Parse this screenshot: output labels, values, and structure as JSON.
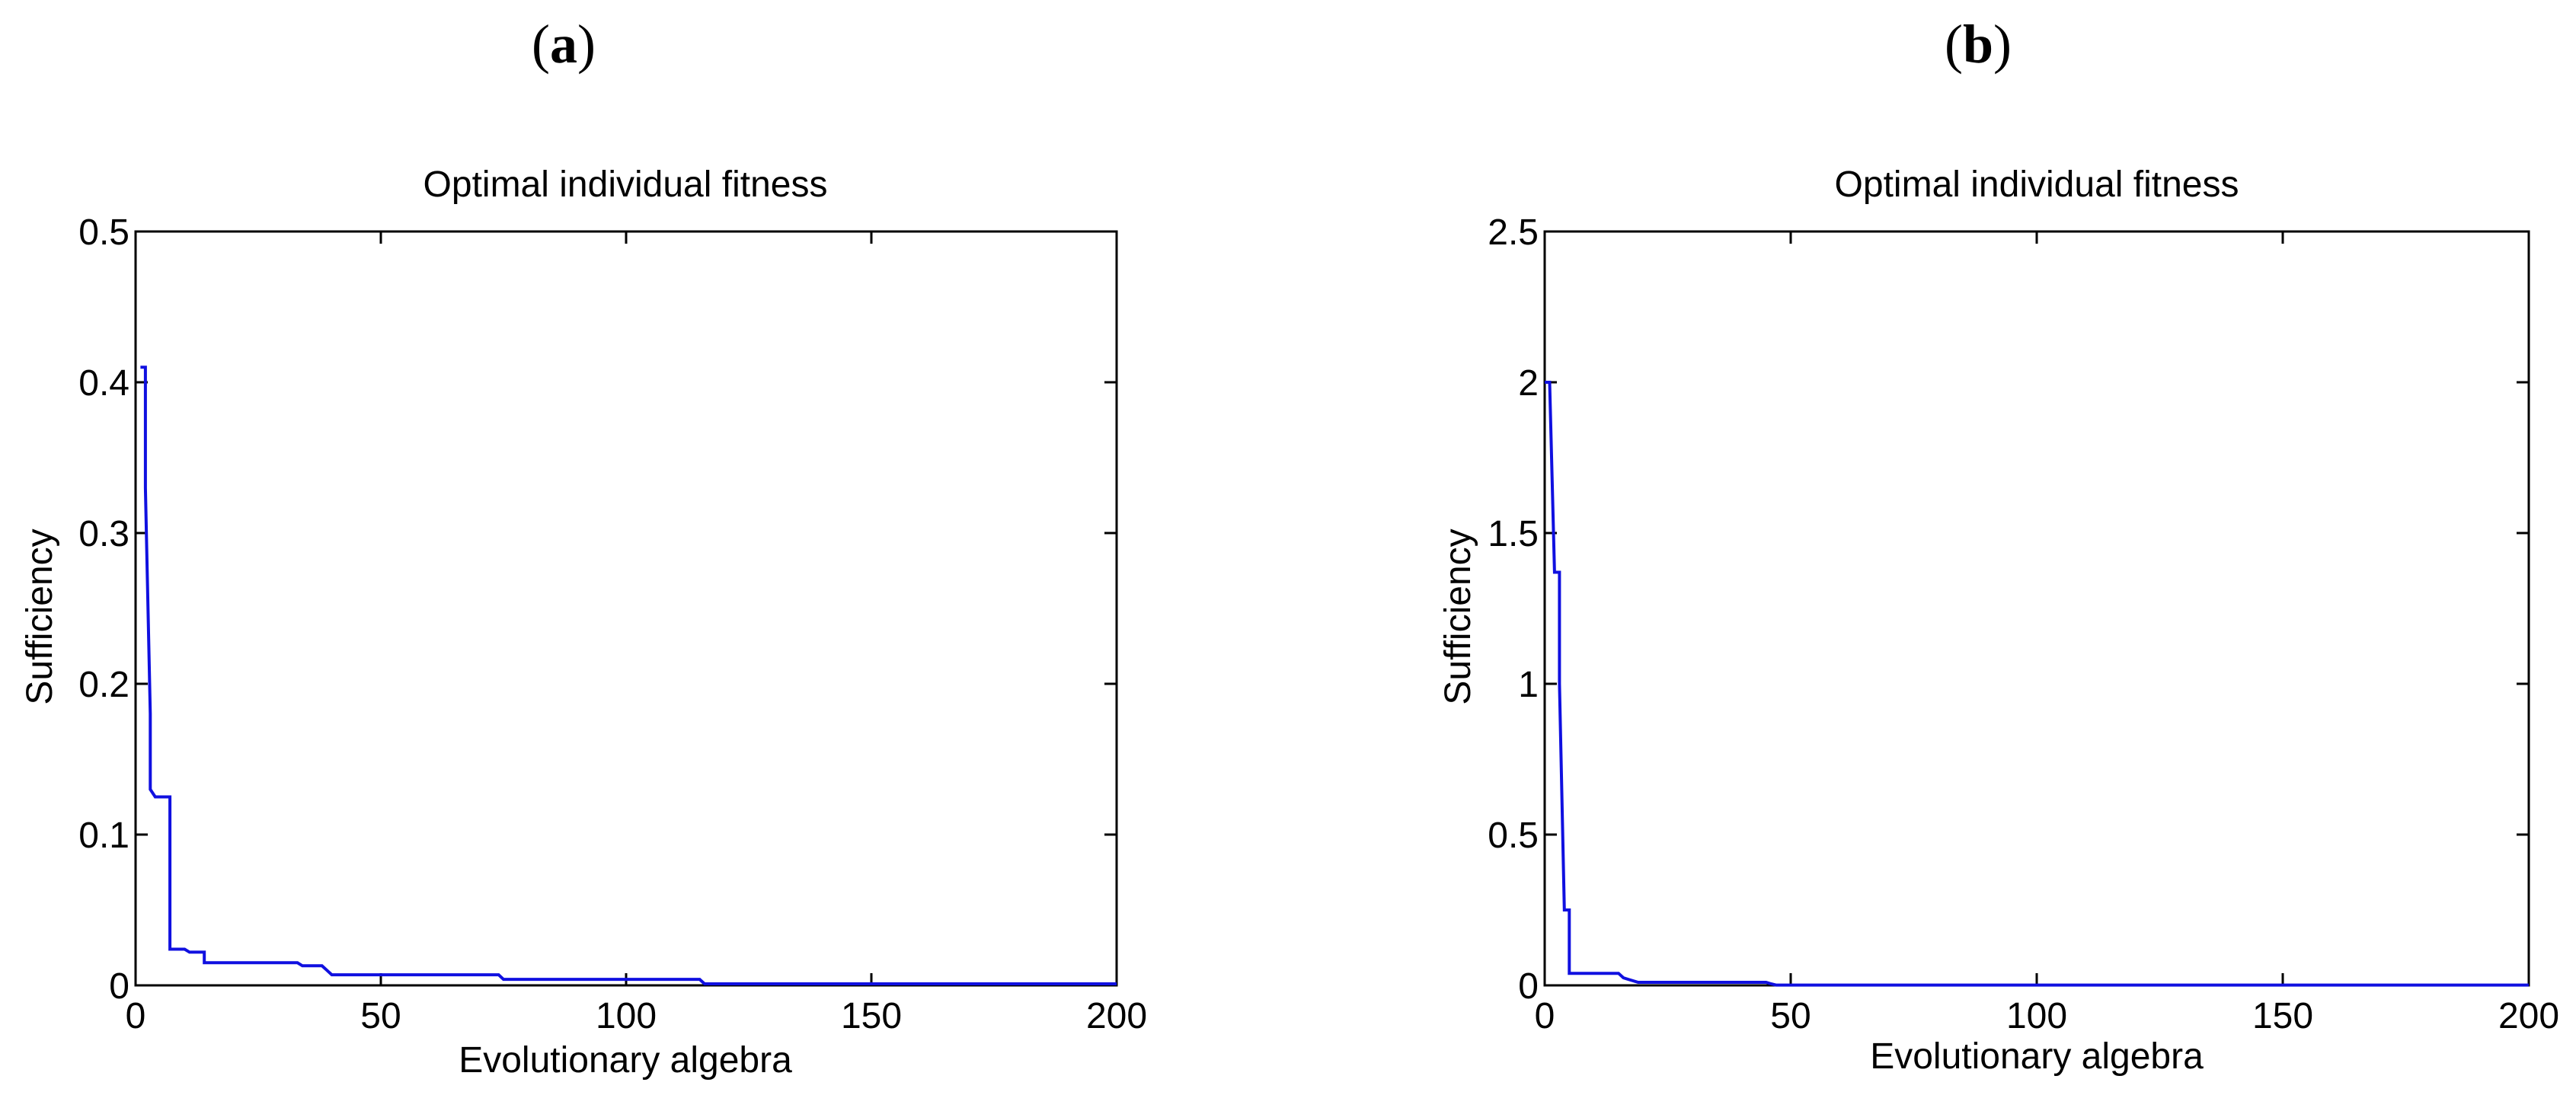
{
  "panels": [
    {
      "label": "a"
    },
    {
      "label": "b"
    }
  ],
  "chart_data": [
    {
      "type": "line",
      "title": "Optimal individual fitness",
      "xlabel": "Evolutionary algebra",
      "ylabel": "Sufficiency",
      "xlim": [
        0,
        200
      ],
      "ylim": [
        0,
        0.5
      ],
      "xticks": [
        0,
        50,
        100,
        150,
        200
      ],
      "xtick_labels": [
        "0",
        "50",
        "100",
        "150",
        "200"
      ],
      "yticks": [
        0,
        0.1,
        0.2,
        0.3,
        0.4,
        0.5
      ],
      "ytick_labels": [
        "0",
        "0.1",
        "0.2",
        "0.3",
        "0.4",
        "0.5"
      ],
      "grid": false,
      "line_color": "#1010e0",
      "series": [
        {
          "x": [
            1,
            2,
            2,
            3,
            3,
            4,
            5,
            6,
            7,
            7,
            8,
            9,
            10,
            11,
            12,
            13,
            14,
            14,
            15,
            33,
            34,
            38,
            39,
            40,
            41,
            74,
            75,
            115,
            116,
            200
          ],
          "y": [
            0.41,
            0.41,
            0.33,
            0.18,
            0.13,
            0.125,
            0.125,
            0.125,
            0.125,
            0.024,
            0.024,
            0.024,
            0.024,
            0.022,
            0.022,
            0.022,
            0.022,
            0.015,
            0.015,
            0.015,
            0.013,
            0.013,
            0.01,
            0.007,
            0.007,
            0.007,
            0.004,
            0.004,
            0.001,
            0.001
          ]
        }
      ]
    },
    {
      "type": "line",
      "title": "Optimal individual fitness",
      "xlabel": "Evolutionary algebra",
      "ylabel": "Sufficiency",
      "xlim": [
        0,
        200
      ],
      "ylim": [
        0,
        2.5
      ],
      "xticks": [
        0,
        50,
        100,
        150,
        200
      ],
      "xtick_labels": [
        "0",
        "50",
        "100",
        "150",
        "200"
      ],
      "yticks": [
        0,
        0.5,
        1,
        1.5,
        2,
        2.5
      ],
      "ytick_labels": [
        "0",
        "0.5",
        "1",
        "1.5",
        "2",
        "2.5"
      ],
      "grid": false,
      "line_color": "#1010e0",
      "series": [
        {
          "x": [
            0,
            1,
            2,
            2,
            3,
            3,
            4,
            4,
            5,
            5,
            6,
            15,
            16,
            17,
            19,
            45,
            46,
            47,
            200
          ],
          "y": [
            2.0,
            2.0,
            1.37,
            1.37,
            1.37,
            1.0,
            0.25,
            0.25,
            0.25,
            0.04,
            0.04,
            0.04,
            0.025,
            0.02,
            0.01,
            0.01,
            0.005,
            0.001,
            0.001
          ]
        }
      ]
    }
  ]
}
